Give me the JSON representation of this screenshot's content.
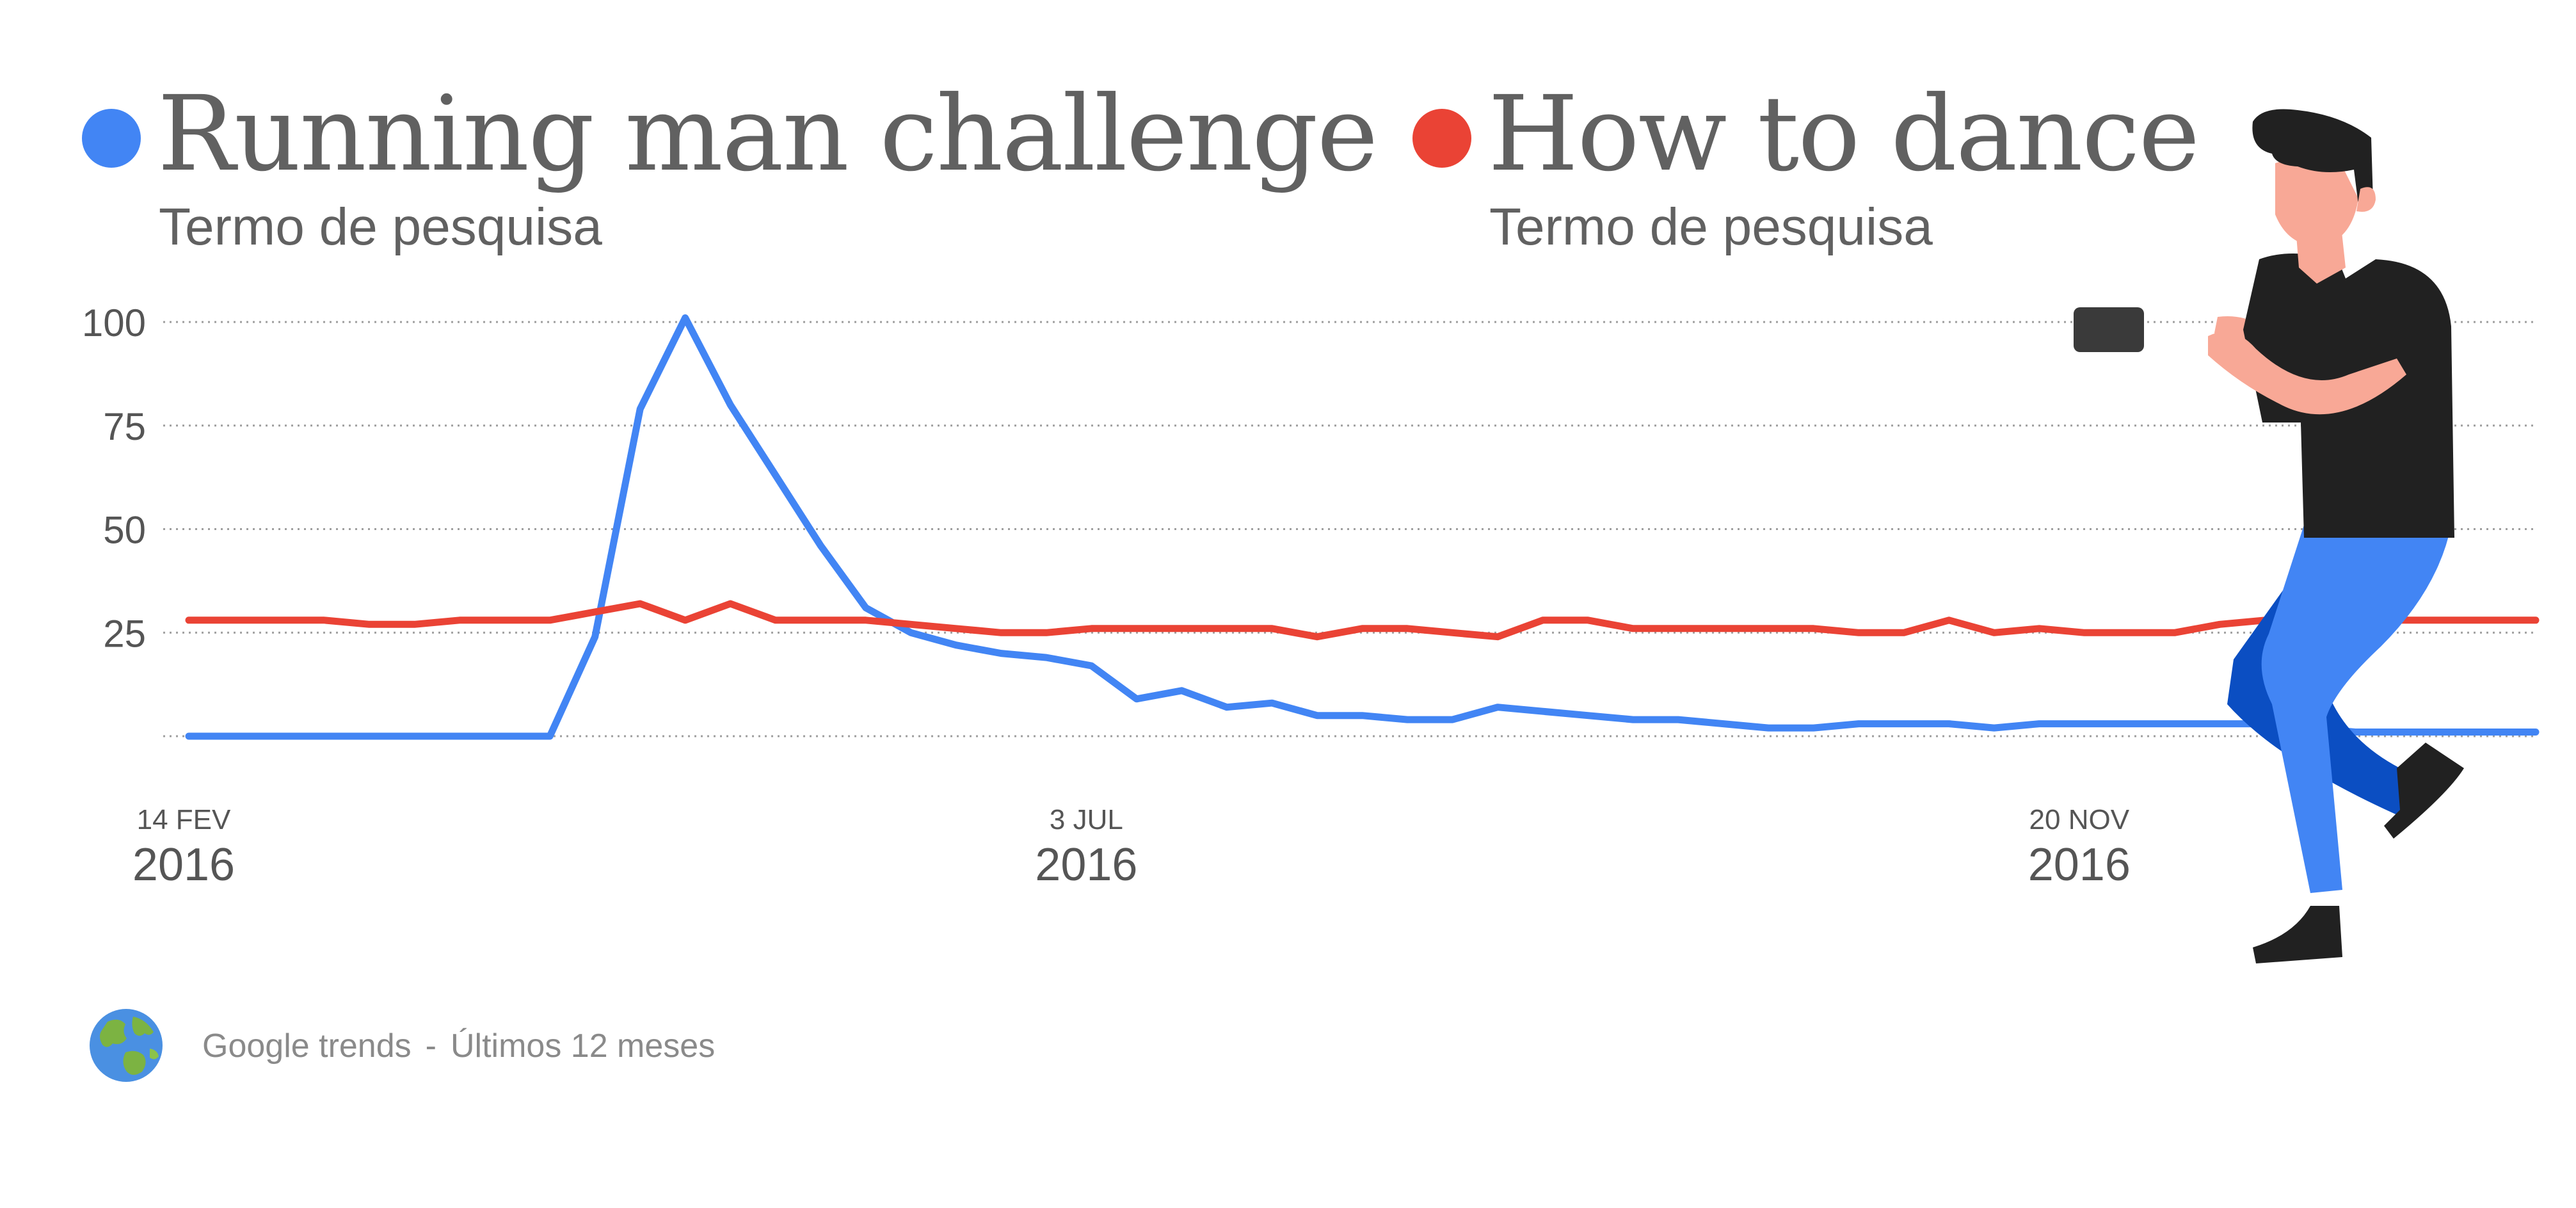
{
  "legend": {
    "series_a": {
      "term": "Running man challenge",
      "subtitle": "Termo de pesquisa",
      "color": "#4285F4"
    },
    "series_b": {
      "term": "How to dance",
      "subtitle": "Termo de pesquisa",
      "color": "#EA4335"
    }
  },
  "footer": {
    "source": "Google trends",
    "separator": "-",
    "period": "Últimos 12 meses",
    "icon": "globe-icon"
  },
  "illustration": {
    "icon": "person-with-phone-illustration"
  },
  "chart_data": {
    "type": "line",
    "ylim": [
      0,
      100
    ],
    "y_ticks": [
      100,
      75,
      50,
      25
    ],
    "grid": true,
    "x_ticks": [
      {
        "index": 0,
        "day": "14 FEV",
        "year": "2016"
      },
      {
        "index": 20,
        "day": "3 JUL",
        "year": "2016"
      },
      {
        "index": 42,
        "day": "20 NOV",
        "year": "2016"
      }
    ],
    "series": [
      {
        "name": "Running man challenge",
        "color": "#4285F4",
        "values": [
          0,
          0,
          0,
          0,
          0,
          0,
          0,
          0,
          0,
          24,
          79,
          101,
          80,
          63,
          46,
          31,
          25,
          22,
          20,
          19,
          17,
          9,
          11,
          7,
          8,
          5,
          5,
          4,
          4,
          7,
          6,
          5,
          4,
          4,
          3,
          2,
          2,
          3,
          3,
          3,
          2,
          3,
          3,
          3,
          3,
          3,
          3,
          2,
          1,
          1,
          1,
          1,
          1
        ]
      },
      {
        "name": "How to dance",
        "color": "#EA4335",
        "values": [
          28,
          28,
          28,
          28,
          27,
          27,
          28,
          28,
          28,
          30,
          32,
          28,
          32,
          28,
          28,
          28,
          27,
          26,
          25,
          25,
          26,
          26,
          26,
          26,
          26,
          24,
          26,
          26,
          25,
          24,
          28,
          28,
          26,
          26,
          26,
          26,
          26,
          25,
          25,
          28,
          25,
          26,
          25,
          25,
          25,
          27,
          28,
          28,
          28,
          28,
          28,
          28,
          28
        ]
      }
    ]
  }
}
